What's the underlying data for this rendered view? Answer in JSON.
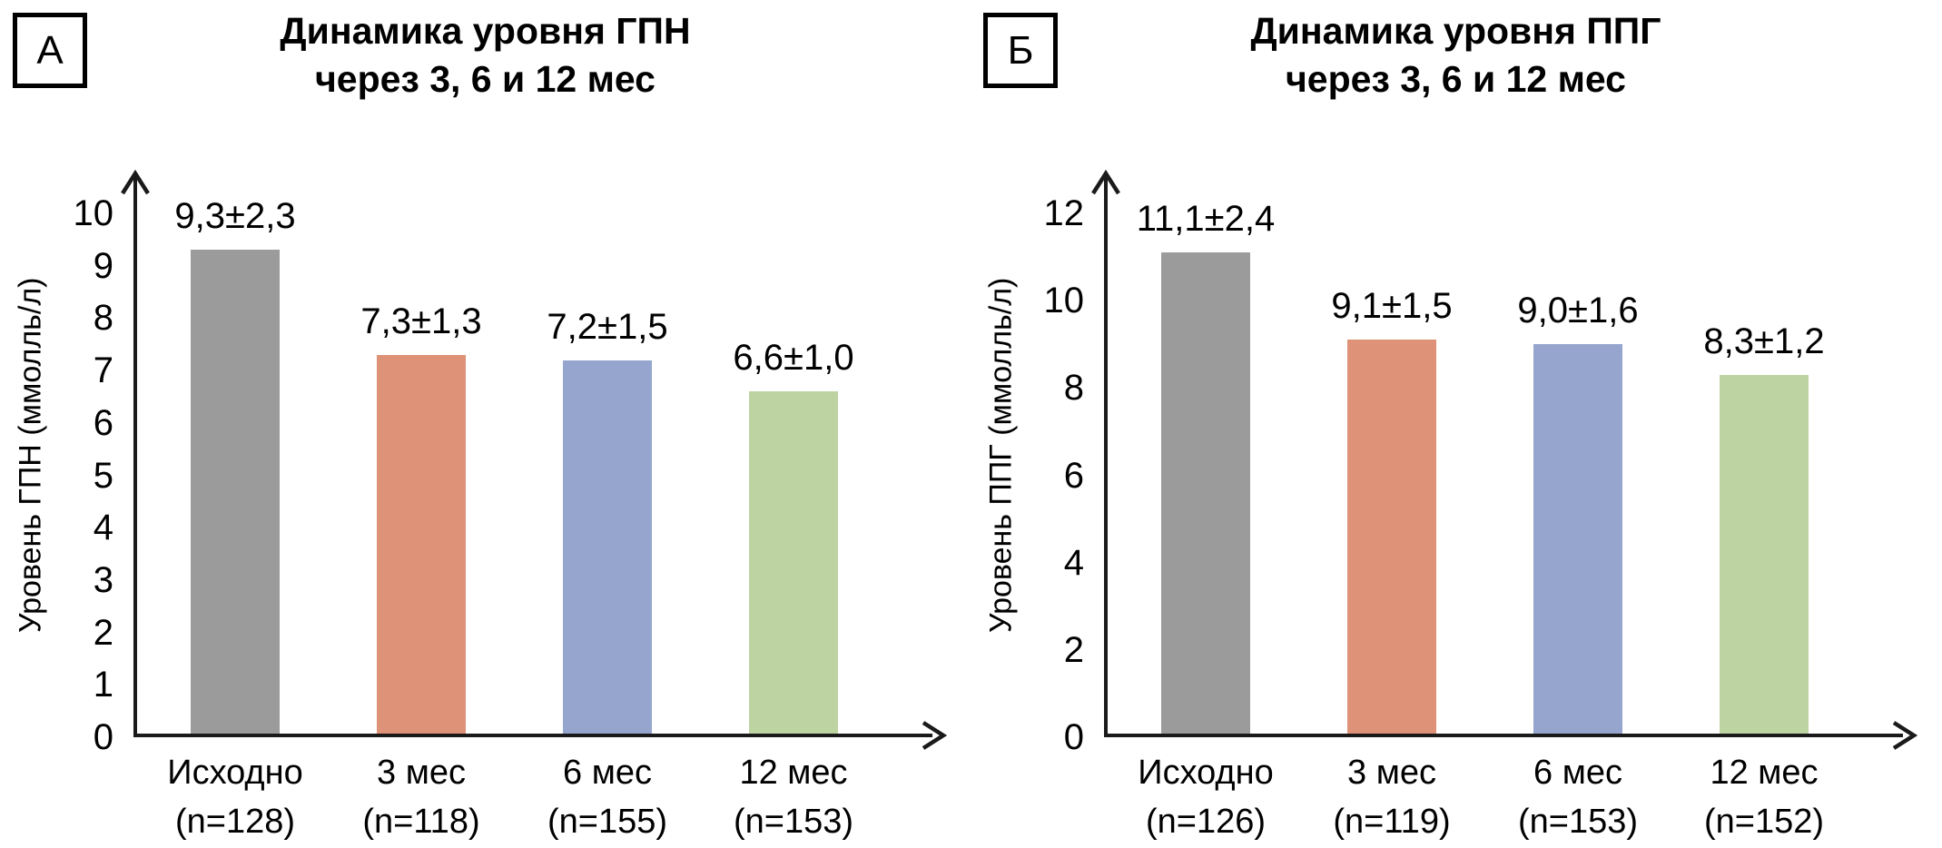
{
  "page": {
    "background": "#ffffff",
    "text_color": "#000000"
  },
  "chart_data": [
    {
      "type": "bar",
      "panel_label": "А",
      "title": "Динамика уровня ГПН через 3, 6 и 12 мес",
      "title_lines": [
        "Динамика уровня ГПН",
        "через 3, 6 и 12 мес"
      ],
      "ylabel": "Уровень ГПН (ммолль/л)",
      "xlabel": "",
      "ylim": [
        0,
        10
      ],
      "yticks": [
        0,
        1,
        2,
        3,
        4,
        5,
        6,
        7,
        8,
        9,
        10
      ],
      "grid": false,
      "legend_position": "none",
      "categories": [
        "Исходно",
        "3 мес",
        "6 мес",
        "12 мес"
      ],
      "sample_sizes": [
        "(n=128)",
        "(n=118)",
        "(n=155)",
        "(n=153)"
      ],
      "values": [
        9.3,
        7.3,
        7.2,
        6.6
      ],
      "value_labels": [
        "9,3±2,3",
        "7,3±1,3",
        "7,2±1,5",
        "6,6±1,0"
      ],
      "bar_colors": [
        "#9b9b9b",
        "#de9277",
        "#96a5cd",
        "#bed3a2"
      ]
    },
    {
      "type": "bar",
      "panel_label": "Б",
      "title": "Динамика уровня ППГ через 3, 6 и 12 мес",
      "title_lines": [
        "Динамика уровня ППГ",
        "через 3, 6 и 12 мес"
      ],
      "ylabel": "Уровень ППГ (ммолль/л)",
      "xlabel": "",
      "ylim": [
        0,
        12
      ],
      "yticks": [
        0,
        2,
        4,
        6,
        8,
        10,
        12
      ],
      "grid": false,
      "legend_position": "none",
      "categories": [
        "Исходно",
        "3 мес",
        "6 мес",
        "12 мес"
      ],
      "sample_sizes": [
        "(n=126)",
        "(n=119)",
        "(n=153)",
        "(n=152)"
      ],
      "values": [
        11.1,
        9.1,
        9.0,
        8.3
      ],
      "value_labels": [
        "11,1±2,4",
        "9,1±1,5",
        "9,0±1,6",
        "8,3±1,2"
      ],
      "bar_colors": [
        "#9b9b9b",
        "#de9277",
        "#96a5cd",
        "#bed3a2"
      ]
    }
  ],
  "axis_color": "#1a1a1a"
}
